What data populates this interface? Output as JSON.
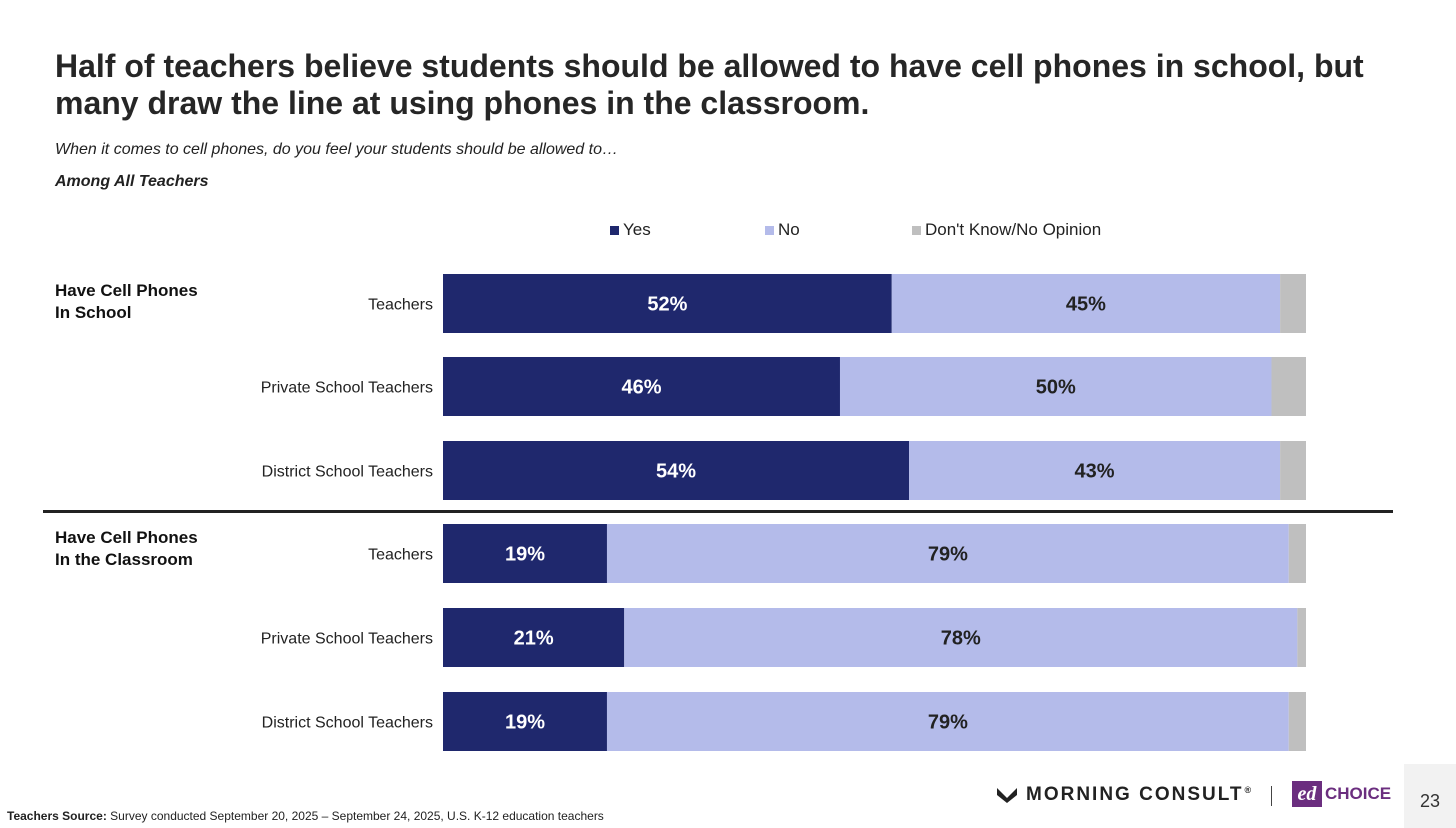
{
  "title": "Half of teachers believe students should be allowed to have cell phones in school, but many draw the line at using phones in the classroom.",
  "subtitle": "When it comes to cell phones, do you feel your students should be allowed to…",
  "base_label": "Among All Teachers",
  "colors": {
    "yes": "#1f286d",
    "no": "#b4bbea",
    "dk": "#bfbfbf"
  },
  "legend": [
    "Yes",
    "No",
    "Don't Know/No Opinion"
  ],
  "groups": [
    {
      "label_line1": "Have Cell Phones",
      "label_line2": "In School"
    },
    {
      "label_line1": "Have Cell Phones",
      "label_line2": "In the Classroom"
    }
  ],
  "chart_data": {
    "type": "bar",
    "orientation": "horizontal",
    "stacked": true,
    "percent_scale": true,
    "legend_position": "top",
    "series": [
      {
        "name": "Yes",
        "color": "#1f286d"
      },
      {
        "name": "No",
        "color": "#b4bbea"
      },
      {
        "name": "Don't Know/No Opinion",
        "color": "#bfbfbf"
      }
    ],
    "rows": [
      {
        "group": 0,
        "category": "Teachers",
        "values": [
          52,
          45,
          3
        ],
        "labels": [
          "52%",
          "45%",
          ""
        ]
      },
      {
        "group": 0,
        "category": "Private School Teachers",
        "values": [
          46,
          50,
          4
        ],
        "labels": [
          "46%",
          "50%",
          ""
        ]
      },
      {
        "group": 0,
        "category": "District School Teachers",
        "values": [
          54,
          43,
          3
        ],
        "labels": [
          "54%",
          "43%",
          ""
        ]
      },
      {
        "group": 1,
        "category": "Teachers",
        "values": [
          19,
          79,
          2
        ],
        "labels": [
          "19%",
          "79%",
          ""
        ]
      },
      {
        "group": 1,
        "category": "Private School Teachers",
        "values": [
          21,
          78,
          1
        ],
        "labels": [
          "21%",
          "78%",
          ""
        ]
      },
      {
        "group": 1,
        "category": "District School Teachers",
        "values": [
          19,
          79,
          2
        ],
        "labels": [
          "19%",
          "79%",
          ""
        ]
      }
    ]
  },
  "footer": {
    "source_label": "Teachers Source:",
    "source_text": " Survey conducted September 20, 2025 – September 24, 2025, U.S. K-12 education teachers"
  },
  "brand": {
    "morning_consult": "MORNING CONSULT",
    "reg": "®",
    "ed_mark": "ed",
    "choice": "CHOICE"
  },
  "page_number": "23"
}
